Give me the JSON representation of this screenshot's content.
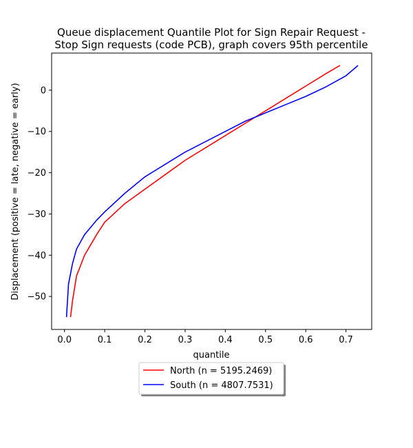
{
  "chart_data": {
    "type": "line",
    "title_line1": "Queue displacement Quantile Plot for Sign Repair Request -",
    "title_line2": "Stop Sign  requests (code PCB), graph covers 95th percentile",
    "xlabel": "quantile",
    "ylabel": "Displacement (positive = late, negative = early)",
    "xlim": [
      -0.032,
      0.764
    ],
    "ylim": [
      -58,
      9
    ],
    "xticks": [
      0.0,
      0.1,
      0.2,
      0.3,
      0.4,
      0.5,
      0.6,
      0.7
    ],
    "xtick_labels": [
      "0.0",
      "0.1",
      "0.2",
      "0.3",
      "0.4",
      "0.5",
      "0.6",
      "0.7"
    ],
    "yticks": [
      -50,
      -40,
      -30,
      -20,
      -10,
      0
    ],
    "ytick_labels": [
      "−50",
      "−40",
      "−30",
      "−20",
      "−10",
      "0"
    ],
    "grid": false,
    "legend_placement": "below-center",
    "series": [
      {
        "name": "North (n = 5195.2469)",
        "color": "#ff0000",
        "x": [
          0.015,
          0.02,
          0.03,
          0.05,
          0.08,
          0.1,
          0.15,
          0.2,
          0.25,
          0.3,
          0.35,
          0.4,
          0.45,
          0.5,
          0.55,
          0.6,
          0.65,
          0.685
        ],
        "y": [
          -55,
          -51,
          -45,
          -40,
          -35,
          -32,
          -27.5,
          -24,
          -20.5,
          -17,
          -14,
          -11,
          -8,
          -5,
          -2,
          1,
          4,
          6
        ]
      },
      {
        "name": "South (n = 4807.7531)",
        "color": "#0000ff",
        "x": [
          0.005,
          0.01,
          0.02,
          0.03,
          0.05,
          0.08,
          0.1,
          0.15,
          0.2,
          0.25,
          0.3,
          0.35,
          0.4,
          0.45,
          0.5,
          0.55,
          0.6,
          0.65,
          0.7,
          0.73
        ],
        "y": [
          -55,
          -47,
          -42,
          -38.5,
          -35,
          -31.5,
          -29.5,
          -25,
          -21,
          -18,
          -15,
          -12.5,
          -10,
          -7.5,
          -5.5,
          -3.5,
          -1.5,
          0.8,
          3.5,
          6
        ]
      }
    ]
  }
}
